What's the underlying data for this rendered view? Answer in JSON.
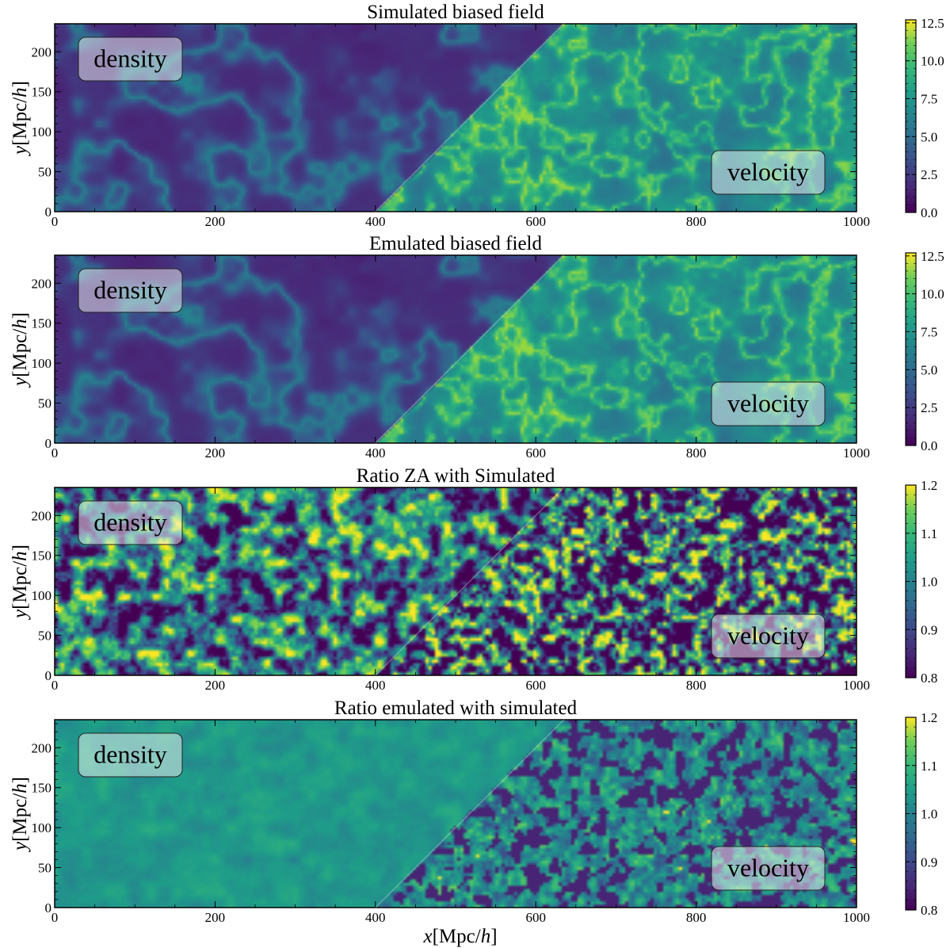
{
  "chart_data": [
    {
      "type": "heatmap",
      "title": "Simulated biased field",
      "ylabel": "y[Mpc/h]",
      "xlabel": "",
      "xlim": [
        0,
        1000
      ],
      "ylim": [
        0,
        235
      ],
      "xticks": [
        0,
        200,
        400,
        600,
        800,
        1000
      ],
      "yticks": [
        0,
        50,
        100,
        150,
        200
      ],
      "colorbar": {
        "ticks": [
          "0.0",
          "2.5",
          "5.0",
          "7.5",
          "10.0",
          "12.5"
        ],
        "range": [
          0,
          12.7
        ],
        "colormap": "viridis"
      },
      "annotations": [
        "density",
        "velocity"
      ],
      "split_line": {
        "from": [
          400,
          0
        ],
        "to": [
          635,
          235
        ]
      },
      "grid": false
    },
    {
      "type": "heatmap",
      "title": "Emulated biased field",
      "ylabel": "y[Mpc/h]",
      "xlabel": "",
      "xlim": [
        0,
        1000
      ],
      "ylim": [
        0,
        235
      ],
      "xticks": [
        0,
        200,
        400,
        600,
        800,
        1000
      ],
      "yticks": [
        0,
        50,
        100,
        150,
        200
      ],
      "colorbar": {
        "ticks": [
          "0.0",
          "2.5",
          "5.0",
          "7.5",
          "10.0",
          "12.5"
        ],
        "range": [
          0,
          12.7
        ],
        "colormap": "viridis"
      },
      "annotations": [
        "density",
        "velocity"
      ],
      "split_line": {
        "from": [
          400,
          0
        ],
        "to": [
          635,
          235
        ]
      },
      "grid": false
    },
    {
      "type": "heatmap",
      "title": "Ratio ZA with Simulated",
      "ylabel": "y[Mpc/h]",
      "xlabel": "",
      "xlim": [
        0,
        1000
      ],
      "ylim": [
        0,
        235
      ],
      "xticks": [
        0,
        200,
        400,
        600,
        800,
        1000
      ],
      "yticks": [
        0,
        50,
        100,
        150,
        200
      ],
      "colorbar": {
        "ticks": [
          "0.8",
          "0.9",
          "1.0",
          "1.1",
          "1.2"
        ],
        "range": [
          0.8,
          1.2
        ],
        "colormap": "viridis"
      },
      "annotations": [
        "density",
        "velocity"
      ],
      "split_line": {
        "from": [
          400,
          0
        ],
        "to": [
          635,
          235
        ]
      },
      "grid": false
    },
    {
      "type": "heatmap",
      "title": "Ratio emulated with simulated",
      "ylabel": "y[Mpc/h]",
      "xlabel": "x[Mpc/h]",
      "xlim": [
        0,
        1000
      ],
      "ylim": [
        0,
        235
      ],
      "xticks": [
        0,
        200,
        400,
        600,
        800,
        1000
      ],
      "yticks": [
        0,
        50,
        100,
        150,
        200
      ],
      "colorbar": {
        "ticks": [
          "0.8",
          "0.9",
          "1.0",
          "1.1",
          "1.2"
        ],
        "range": [
          0.8,
          1.2
        ],
        "colormap": "viridis"
      },
      "annotations": [
        "density",
        "velocity"
      ],
      "split_line": {
        "from": [
          400,
          0
        ],
        "to": [
          635,
          235
        ]
      },
      "grid": false
    }
  ]
}
